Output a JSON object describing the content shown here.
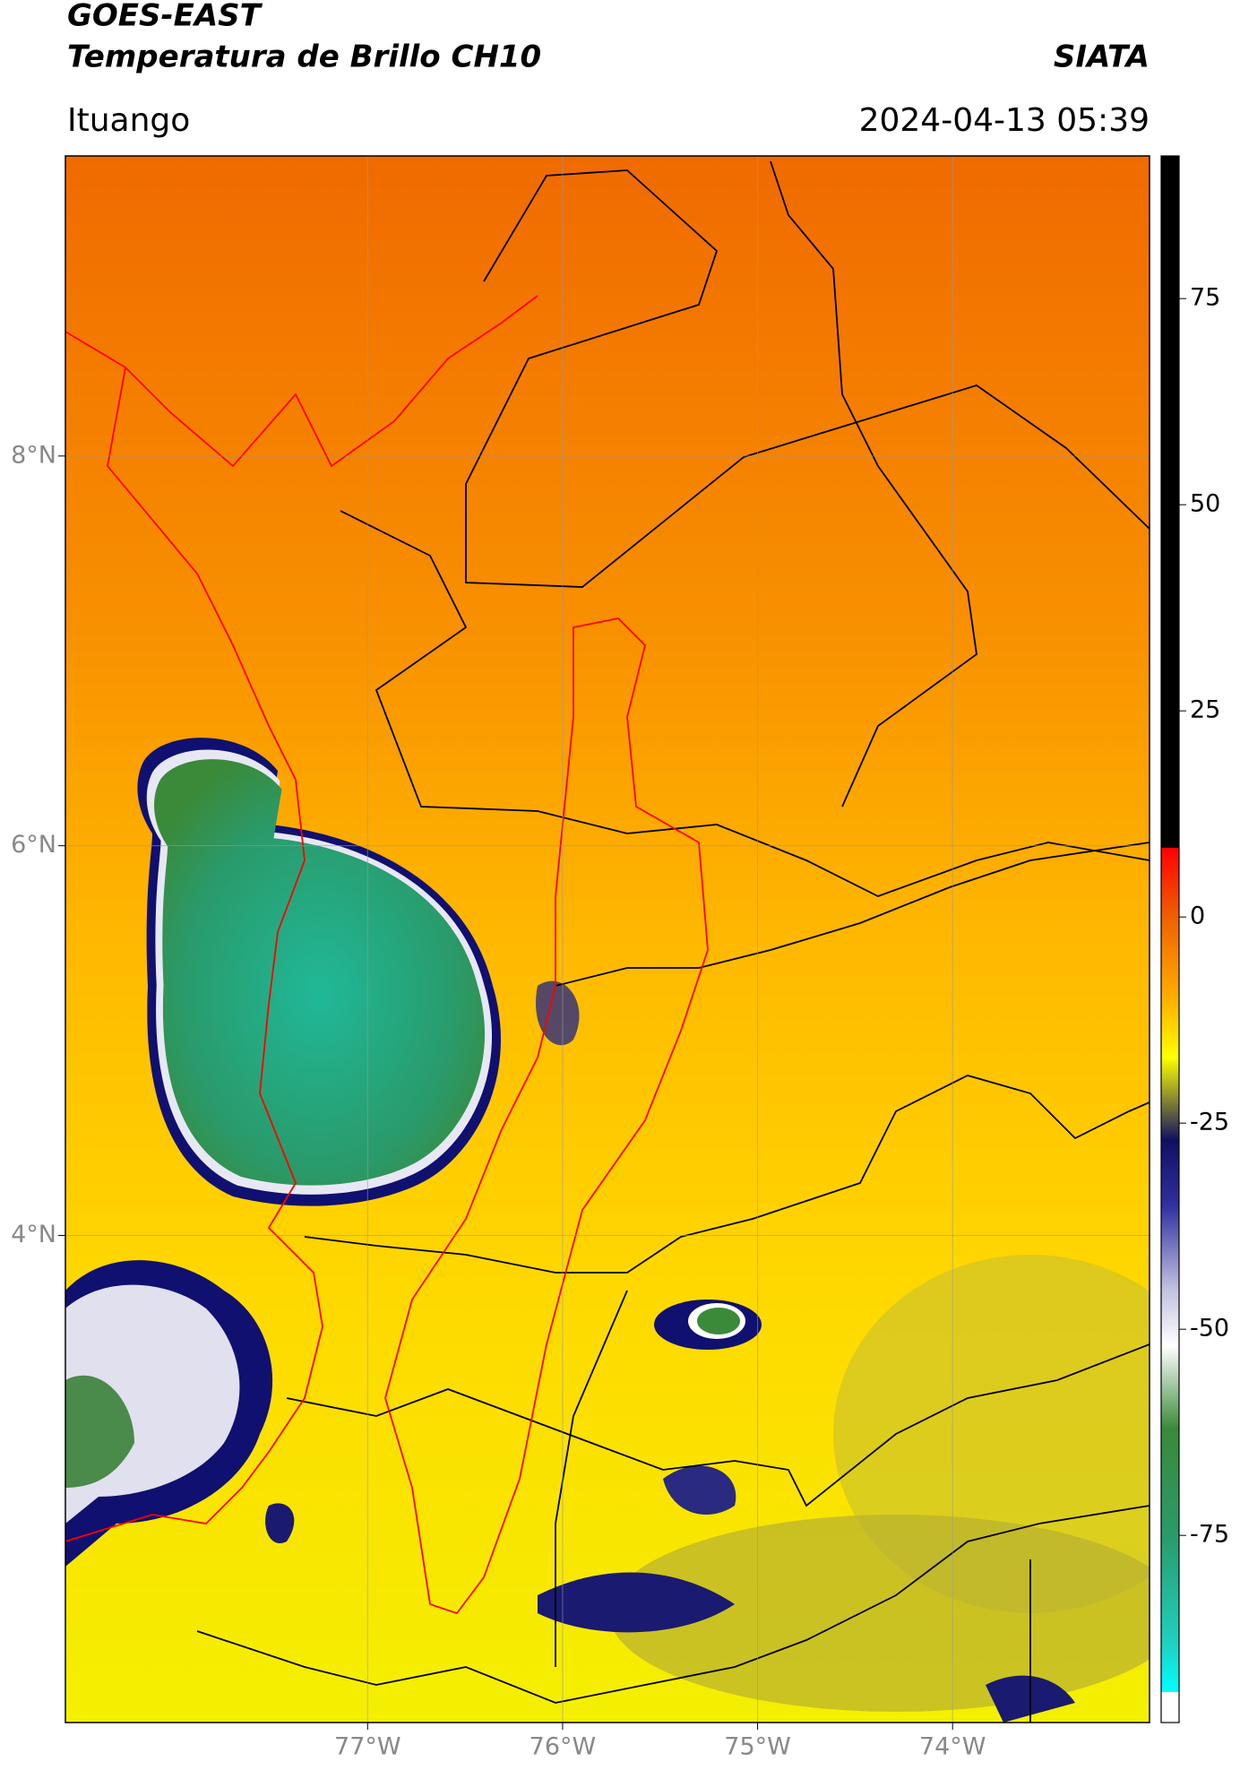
{
  "header": {
    "title": "GOES-EAST",
    "subtitle": "Temperatura de Brillo CH10",
    "brand": "SIATA",
    "location": "Ituango",
    "datetime": "2024-04-13 05:39"
  },
  "map": {
    "lonlim": [
      -78.55,
      -72.99
    ],
    "latlim": [
      1.5,
      9.54
    ],
    "lon_ticks": [
      {
        "value": -77,
        "label": "77°W"
      },
      {
        "value": -76,
        "label": "76°W"
      },
      {
        "value": -75,
        "label": "75°W"
      },
      {
        "value": -74,
        "label": "74°W"
      }
    ],
    "lat_ticks": [
      {
        "value": 8,
        "label": "8°N"
      },
      {
        "value": 6,
        "label": "6°N"
      },
      {
        "value": 4,
        "label": "4°N"
      }
    ]
  },
  "colorbar": {
    "lim": [
      -97.7,
      92.3
    ],
    "ticks": [
      75,
      50,
      25,
      0,
      -25,
      -50,
      -75
    ],
    "stops": [
      [
        92.3,
        "#000000"
      ],
      [
        8.4,
        "#000000"
      ],
      [
        8.4,
        "#ff0000"
      ],
      [
        0,
        "#f06000"
      ],
      [
        -10,
        "#ffb000"
      ],
      [
        -17,
        "#ffff00"
      ],
      [
        -22,
        "#8a8a30"
      ],
      [
        -27,
        "#101060"
      ],
      [
        -35,
        "#3030a0"
      ],
      [
        -45,
        "#c0c0e0"
      ],
      [
        -52,
        "#ffffff"
      ],
      [
        -62,
        "#3a8a3a"
      ],
      [
        -75,
        "#2a9a6a"
      ],
      [
        -88,
        "#20d0c0"
      ],
      [
        -94,
        "#00ffff"
      ],
      [
        -94,
        "#ffffff"
      ],
      [
        -97.7,
        "#ffffff"
      ]
    ]
  }
}
